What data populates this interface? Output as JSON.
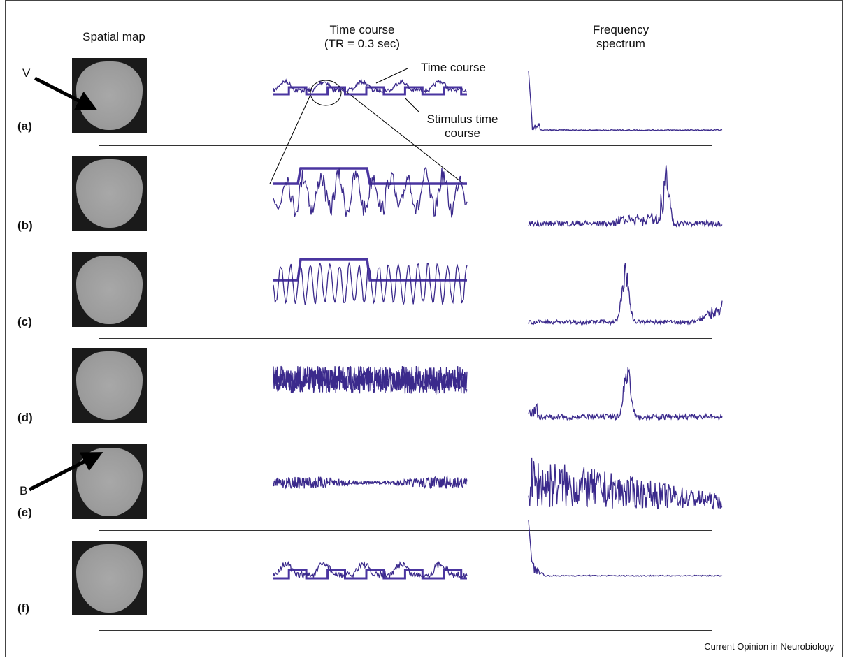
{
  "headers": {
    "spatial_map": "Spatial map",
    "time_course_line1": "Time course",
    "time_course_line2": "(TR = 0.3 sec)",
    "freq_line1": "Frequency",
    "freq_line2": "spectrum"
  },
  "annotations": {
    "arrow_v_label": "V",
    "arrow_b_label": "B",
    "time_course_label": "Time course",
    "stimulus_line1": "Stimulus time",
    "stimulus_line2": "course"
  },
  "rows": [
    {
      "label": "(a)"
    },
    {
      "label": "(b)"
    },
    {
      "label": "(c)"
    },
    {
      "label": "(d)"
    },
    {
      "label": "(e)"
    },
    {
      "label": "(f)"
    }
  ],
  "credit": "Current Opinion in Neurobiology",
  "colors": {
    "trace": "#3b2a8c",
    "stimulus": "#4a35a0",
    "rule": "#333333"
  }
}
